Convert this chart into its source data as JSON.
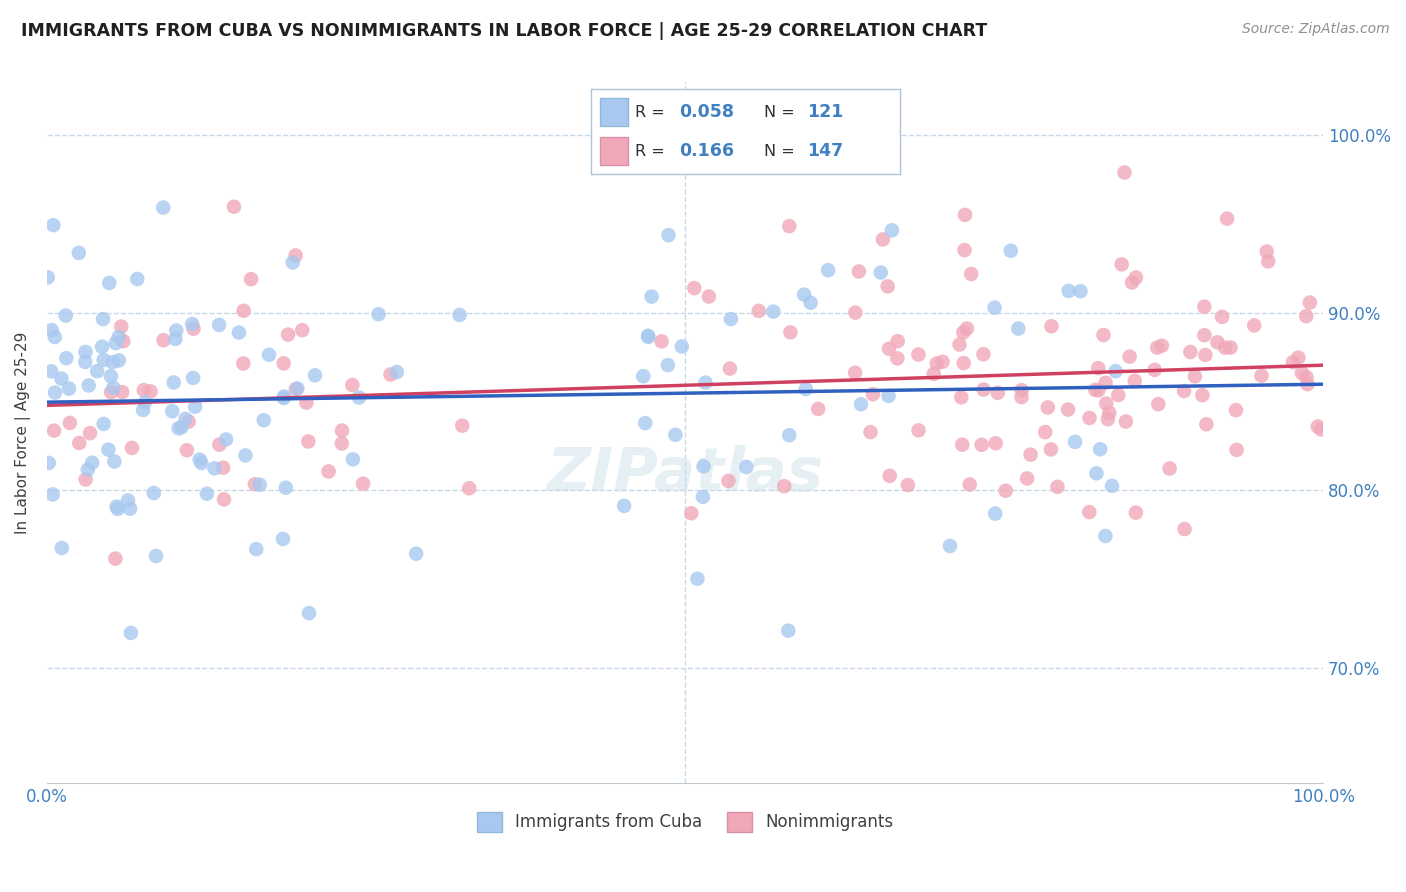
{
  "title": "IMMIGRANTS FROM CUBA VS NONIMMIGRANTS IN LABOR FORCE | AGE 25-29 CORRELATION CHART",
  "source": "Source: ZipAtlas.com",
  "ylabel": "In Labor Force | Age 25-29",
  "xmin": 0.0,
  "xmax": 1.0,
  "ymin": 0.635,
  "ymax": 1.03,
  "yticks": [
    0.7,
    0.8,
    0.9,
    1.0
  ],
  "ytick_labels": [
    "70.0%",
    "80.0%",
    "90.0%",
    "100.0%"
  ],
  "color_blue": "#a8c8f0",
  "color_pink": "#f0a8b8",
  "color_blue_line": "#3060c0",
  "color_pink_line": "#d04060",
  "color_axis_label": "#4080c0",
  "color_title": "#202020",
  "watermark": "ZIPatlas",
  "n_blue": 121,
  "n_pink": 147,
  "r_blue": 0.058,
  "r_pink": 0.166,
  "background_color": "#ffffff",
  "grid_color": "#c8d8e8",
  "legend_label1": "Immigrants from Cuba",
  "legend_label2": "Nonimmigrants",
  "trend_blue_start": 0.855,
  "trend_blue_end": 0.865,
  "trend_pink_start": 0.853,
  "trend_pink_end": 0.866
}
